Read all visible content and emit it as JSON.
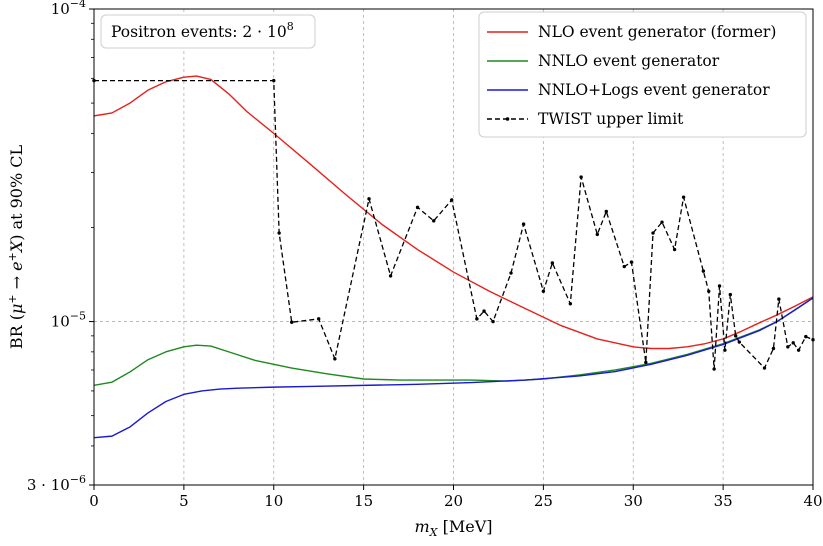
{
  "chart_data": {
    "type": "line",
    "xlabel": "m_X [MeV]",
    "ylabel": "BR (μ⁺ → e⁺X) at 90% CL",
    "xlim": [
      0,
      40
    ],
    "ylim": [
      3e-06,
      0.0001
    ],
    "yscale": "log",
    "grid": true,
    "legend_position": "top-right",
    "annotation": "Positron events: 2 · 10⁸",
    "x_ticks": [
      0,
      5,
      10,
      15,
      20,
      25,
      30,
      35,
      40
    ],
    "x_tick_labels": [
      "0",
      "5",
      "10",
      "15",
      "20",
      "25",
      "30",
      "35",
      "40"
    ],
    "y_ticks": [
      {
        "value": 0.0001,
        "base": "10",
        "exp": "−4"
      },
      {
        "value": 1e-05,
        "base": "10",
        "exp": "−5"
      },
      {
        "value": 3e-06,
        "base": "3 · 10",
        "exp": "−6"
      }
    ],
    "series": [
      {
        "name": "NLO event generator (former)",
        "color": "#e8201a",
        "style": "solid",
        "x": [
          0,
          1,
          2,
          3,
          4,
          5,
          5.7,
          6.5,
          7.5,
          8.5,
          10,
          12,
          14,
          16,
          18,
          20,
          22,
          24,
          26,
          28,
          30,
          31,
          32,
          33,
          34,
          35,
          36,
          37,
          38,
          39,
          40
        ],
        "y": [
          4.55e-05,
          4.65e-05,
          5e-05,
          5.5e-05,
          5.85e-05,
          6.05e-05,
          6.1e-05,
          5.95e-05,
          5.35e-05,
          4.7e-05,
          4e-05,
          3.2e-05,
          2.55e-05,
          2.05e-05,
          1.7e-05,
          1.44e-05,
          1.25e-05,
          1.1e-05,
          9.7e-06,
          8.8e-06,
          8.3e-06,
          8.2e-06,
          8.2e-06,
          8.3e-06,
          8.5e-06,
          8.8e-06,
          9.3e-06,
          9.9e-06,
          1.05e-05,
          1.12e-05,
          1.2e-05
        ]
      },
      {
        "name": "NNLO event generator",
        "color": "#1f8a1f",
        "style": "solid",
        "x": [
          0,
          1,
          2,
          3,
          4,
          5,
          5.7,
          6.5,
          7.5,
          9,
          11,
          13,
          15,
          17,
          19,
          21,
          23,
          25,
          27,
          29,
          31,
          33,
          35,
          37,
          38,
          39,
          40
        ],
        "y": [
          6.25e-06,
          6.4e-06,
          6.9e-06,
          7.55e-06,
          8e-06,
          8.3e-06,
          8.4e-06,
          8.35e-06,
          8e-06,
          7.5e-06,
          7.1e-06,
          6.8e-06,
          6.55e-06,
          6.5e-06,
          6.5e-06,
          6.5e-06,
          6.45e-06,
          6.55e-06,
          6.75e-06,
          7e-06,
          7.35e-06,
          7.85e-06,
          8.5e-06,
          9.4e-06,
          1e-05,
          1.09e-05,
          1.19e-05
        ]
      },
      {
        "name": "NNLO+Logs event generator",
        "color": "#1a1ad6",
        "style": "solid",
        "x": [
          0,
          1,
          2,
          3,
          4,
          5,
          6,
          7,
          8,
          10,
          12,
          15,
          18,
          21,
          24,
          27,
          29,
          31,
          33,
          35,
          37,
          38,
          39,
          40
        ],
        "y": [
          4.25e-06,
          4.3e-06,
          4.6e-06,
          5.1e-06,
          5.55e-06,
          5.85e-06,
          6e-06,
          6.08e-06,
          6.12e-06,
          6.17e-06,
          6.2e-06,
          6.25e-06,
          6.3e-06,
          6.38e-06,
          6.5e-06,
          6.7e-06,
          6.92e-06,
          7.3e-06,
          7.8e-06,
          8.45e-06,
          9.35e-06,
          1e-05,
          1.09e-05,
          1.19e-05
        ]
      },
      {
        "name": "TWIST upper limit",
        "color": "#000000",
        "style": "dashed-markers",
        "x": [
          0,
          10,
          10.3,
          11,
          12.5,
          13.4,
          15.3,
          16.5,
          18,
          18.9,
          19.9,
          21.3,
          21.7,
          22.2,
          23.2,
          23.9,
          25,
          25.5,
          26.5,
          27.1,
          28,
          28.5,
          29.5,
          29.9,
          30.7,
          31.1,
          31.6,
          32.3,
          32.8,
          33.9,
          34.2,
          34.5,
          34.8,
          35.1,
          35.4,
          35.7,
          35.9,
          37.3,
          37.8,
          38.1,
          38.6,
          38.9,
          39.2,
          39.6,
          40
        ],
        "y": [
          5.9e-05,
          5.9e-05,
          1.92e-05,
          9.95e-06,
          1.02e-05,
          7.6e-06,
          2.47e-05,
          1.4e-05,
          2.32e-05,
          2.1e-05,
          2.45e-05,
          1.02e-05,
          1.08e-05,
          1e-05,
          1.43e-05,
          2.05e-05,
          1.25e-05,
          1.54e-05,
          1.14e-05,
          2.9e-05,
          1.9e-05,
          2.25e-05,
          1.5e-05,
          1.55e-05,
          7.4e-06,
          1.92e-05,
          2.08e-05,
          1.7e-05,
          2.5e-05,
          1.45e-05,
          1.25e-05,
          7.05e-06,
          1.3e-05,
          8.1e-06,
          1.22e-05,
          9e-06,
          8.6e-06,
          7.1e-06,
          8.2e-06,
          1.18e-05,
          8.3e-06,
          8.55e-06,
          8.1e-06,
          8.95e-06,
          8.75e-06
        ]
      }
    ]
  }
}
